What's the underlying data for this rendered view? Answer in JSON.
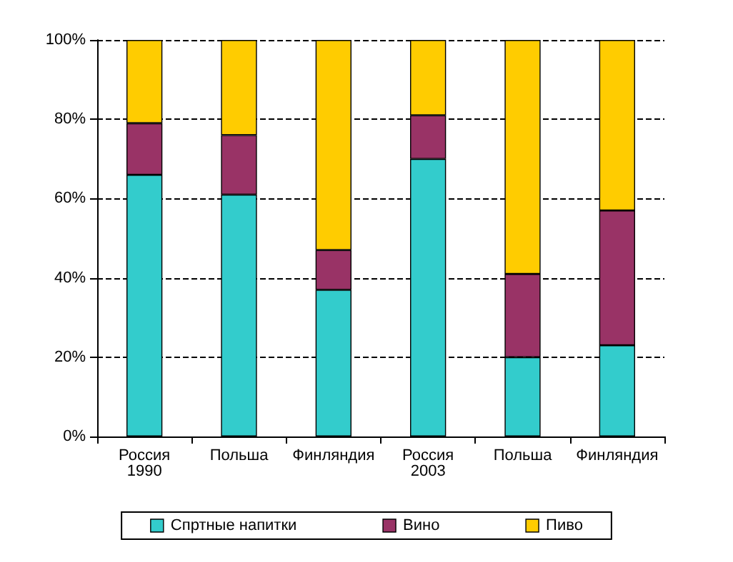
{
  "chart_data": {
    "type": "bar",
    "stacked": true,
    "categories": [
      "Россия\n1990",
      "Польша",
      "Финляндия",
      "Россия\n2003",
      "Польша",
      "Финляндия"
    ],
    "series": [
      {
        "name": "Спртные напитки",
        "color": "#33cccc",
        "values": [
          66,
          61,
          37,
          70,
          20,
          23
        ]
      },
      {
        "name": "Вино",
        "color": "#993366",
        "values": [
          13,
          15,
          10,
          11,
          21,
          34
        ]
      },
      {
        "name": "Пиво",
        "color": "#ffcc00",
        "values": [
          21,
          24,
          53,
          19,
          59,
          43
        ]
      }
    ],
    "ylim": [
      0,
      100
    ],
    "yticks": [
      {
        "value": 0,
        "label": "0%"
      },
      {
        "value": 20,
        "label": "20%"
      },
      {
        "value": 40,
        "label": "40%"
      },
      {
        "value": 60,
        "label": "60%"
      },
      {
        "value": 80,
        "label": "80%"
      },
      {
        "value": 100,
        "label": "100%"
      }
    ],
    "grid": "y",
    "legend": "bottom"
  }
}
